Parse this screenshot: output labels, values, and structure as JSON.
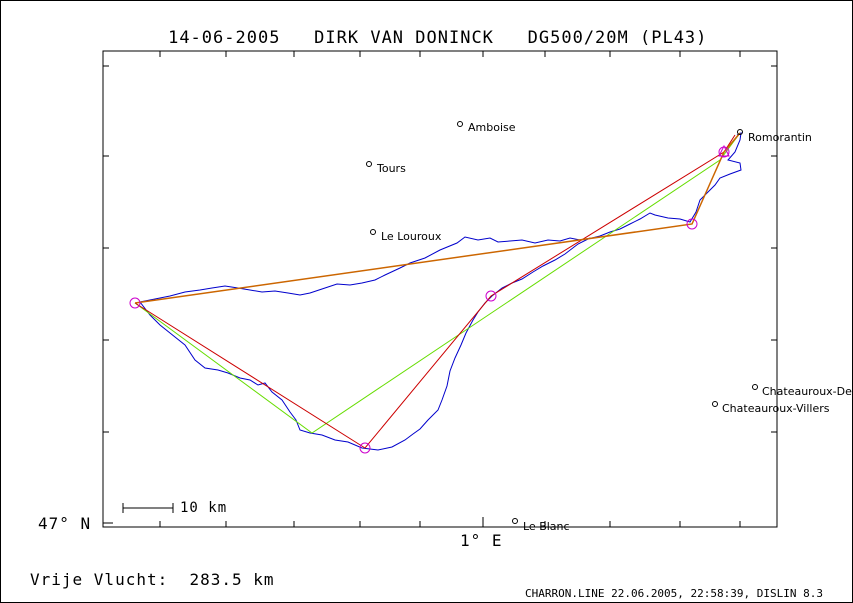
{
  "header": {
    "date": "14-06-2005",
    "pilot": "DIRK VAN DONINCK",
    "glider": "DG500/20M (PL43)"
  },
  "axes": {
    "y_label": "47° N",
    "x_label": "1° E"
  },
  "scale_bar": {
    "label": "10 km"
  },
  "places": [
    {
      "name": "Amboise"
    },
    {
      "name": "Tours"
    },
    {
      "name": "Le Louroux"
    },
    {
      "name": "Romorantin"
    },
    {
      "name": "Chateauroux-De"
    },
    {
      "name": "Chateauroux-Villers"
    },
    {
      "name": "Le Blanc"
    }
  ],
  "footer": {
    "free_flight_label": "Vrije Vlucht:",
    "free_flight_value": "283.5 km",
    "file_info": "CHARRON.LINE 22.06.2005, 22:58:39, DISLIN 8.3"
  },
  "colors": {
    "track": "#0000cc",
    "task_line": "#cc0000",
    "alt_line": "#66dd00",
    "declared_line": "#cc6600",
    "turnpoint": "#cc00cc"
  }
}
